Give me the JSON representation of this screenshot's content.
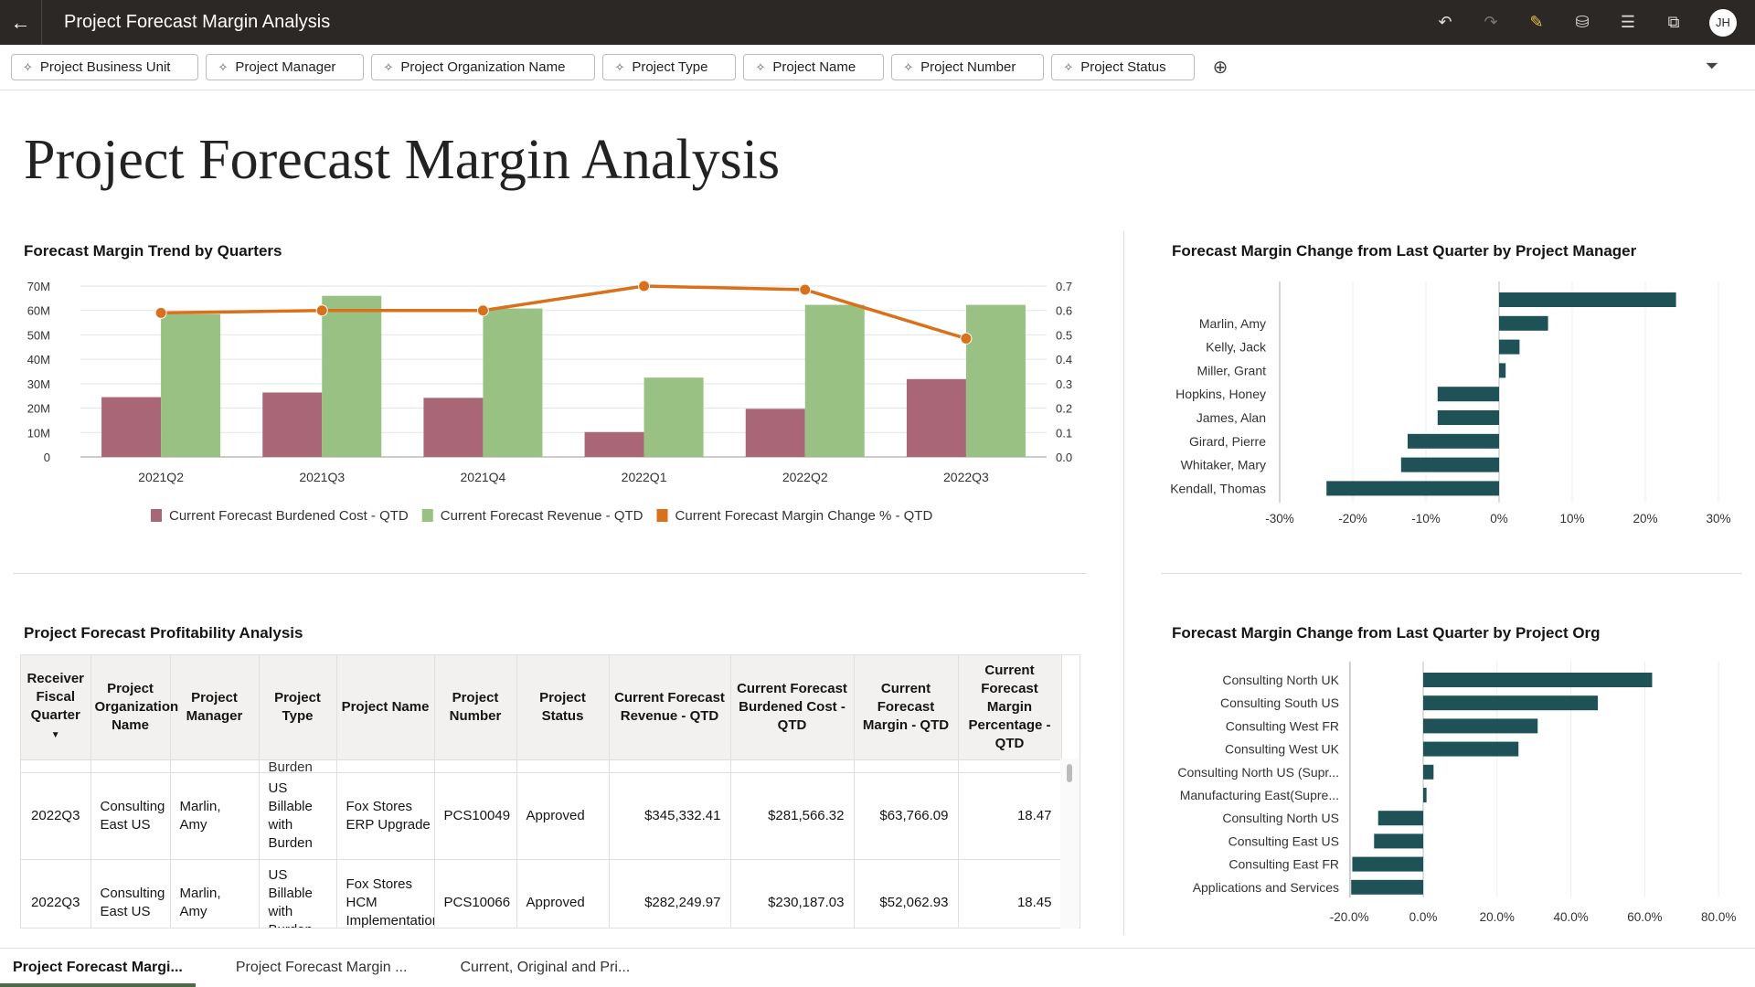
{
  "app": {
    "title": "Project Forecast Margin Analysis",
    "avatar": "JH",
    "icons": [
      "undo-icon",
      "redo-icon",
      "edit-icon",
      "data-icon",
      "comment-icon",
      "present-icon"
    ]
  },
  "filters": [
    "Project Business Unit",
    "Project Manager",
    "Project Organization Name",
    "Project Type",
    "Project Name",
    "Project Number",
    "Project Status"
  ],
  "page_title": "Project Forecast Margin Analysis",
  "colors": {
    "cost": "#a86676",
    "revenue": "#99c183",
    "margin": "#d9711c",
    "bar": "#1f5257"
  },
  "chart_data": [
    {
      "type": "bar+line",
      "title": "Forecast Margin Trend by Quarters",
      "categories": [
        "2021Q2",
        "2021Q3",
        "2021Q4",
        "2022Q1",
        "2022Q2",
        "2022Q3"
      ],
      "series": [
        {
          "name": "Current Forecast Burdened Cost - QTD",
          "type": "bar",
          "axis": "left",
          "values": [
            24500000,
            26400000,
            24200000,
            10200000,
            19700000,
            31900000
          ]
        },
        {
          "name": "Current Forecast Revenue - QTD",
          "type": "bar",
          "axis": "left",
          "values": [
            58500000,
            66000000,
            60800000,
            32500000,
            62300000,
            62300000
          ]
        },
        {
          "name": "Current Forecast Margin Change % - QTD",
          "type": "line",
          "axis": "right",
          "values": [
            0.59,
            0.6,
            0.6,
            0.7,
            0.685,
            0.485
          ]
        }
      ],
      "yticks": [
        "0",
        "10M",
        "20M",
        "30M",
        "40M",
        "50M",
        "60M",
        "70M"
      ],
      "ylim": [
        0,
        70000000
      ],
      "y2ticks": [
        "0.0",
        "0.1",
        "0.2",
        "0.3",
        "0.4",
        "0.5",
        "0.6",
        "0.7"
      ],
      "y2lim": [
        0,
        0.7
      ],
      "legend": "bottom",
      "grid": true
    },
    {
      "type": "hbar",
      "title": "Forecast Margin Change from Last Quarter by Project Manager",
      "categories": [
        "",
        "Marlin, Amy",
        "Kelly, Jack",
        "Miller, Grant",
        "Hopkins, Honey",
        "James, Alan",
        "Girard, Pierre",
        "Whitaker, Mary",
        "Kendall, Thomas"
      ],
      "values": [
        24.2,
        6.7,
        2.8,
        0.9,
        -8.4,
        -8.4,
        -12.5,
        -13.4,
        -23.6
      ],
      "xticks": [
        "-30%",
        "-20%",
        "-10%",
        "0%",
        "10%",
        "20%",
        "30%"
      ],
      "xlim": [
        -30,
        30
      ]
    },
    {
      "type": "hbar",
      "title": "Forecast Margin Change from Last Quarter by Project Org",
      "categories": [
        "Consulting North UK",
        "Consulting South US",
        "Consulting West FR",
        "Consulting West UK",
        "Consulting North US (Supr...",
        "Manufacturing East(Supre...",
        "Consulting North US",
        "Consulting East US",
        "Consulting East FR",
        "Applications and Services"
      ],
      "values": [
        62,
        47.3,
        31,
        25.8,
        2.8,
        0.9,
        -12.2,
        -13.3,
        -19.2,
        -19.5
      ],
      "xticks": [
        "-20.0%",
        "0.0%",
        "20.0%",
        "40.0%",
        "60.0%",
        "80.0%"
      ],
      "xlim": [
        -20,
        80
      ]
    }
  ],
  "table": {
    "title": "Project Forecast Profitability Analysis",
    "columns": [
      "Receiver Fiscal Quarter",
      "Project Organization Name",
      "Project Manager",
      "Project Type",
      "Project Name",
      "Project Number",
      "Project Status",
      "Current Forecast Revenue - QTD",
      "Current Forecast Burdened Cost - QTD",
      "Current Forecast Margin - QTD",
      "Current Forecast Margin Percentage - QTD"
    ],
    "partial_row_text": "Burden",
    "rows": [
      [
        "2022Q3",
        "Consulting East US",
        "Marlin, Amy",
        "US Billable with Burden",
        "Fox Stores ERP Upgrade",
        "PCS10049",
        "Approved",
        "$345,332.41",
        "$281,566.32",
        "$63,766.09",
        "18.47"
      ],
      [
        "2022Q3",
        "Consulting East US",
        "Marlin, Amy",
        "US Billable with Burden",
        "Fox Stores HCM Implementation",
        "PCS10066",
        "Approved",
        "$282,249.97",
        "$230,187.03",
        "$52,062.93",
        "18.45"
      ]
    ]
  },
  "tabs": [
    "Project Forecast Margi...",
    "Project Forecast Margin ...",
    "Current, Original and Pri..."
  ]
}
